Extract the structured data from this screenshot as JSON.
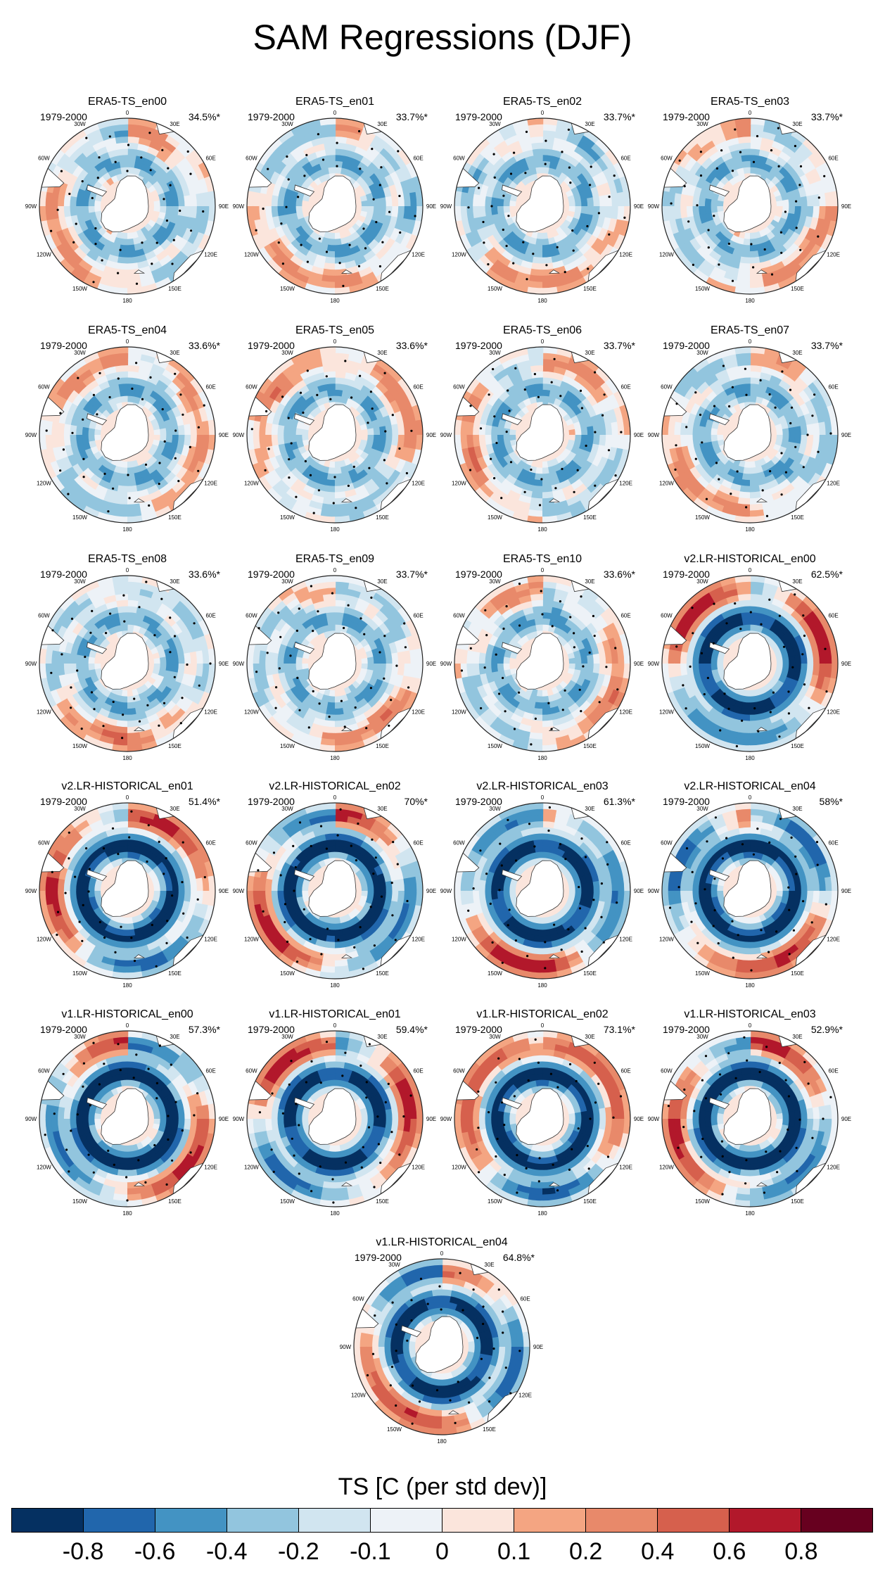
{
  "title": "SAM Regressions (DJF)",
  "colorbar": {
    "title": "TS [C (per std dev)]",
    "ticks": [
      "-0.8",
      "-0.6",
      "-0.4",
      "-0.2",
      "-0.1",
      "0",
      "0.1",
      "0.2",
      "0.4",
      "0.6",
      "0.8"
    ],
    "colors": [
      "#053061",
      "#2166ac",
      "#4393c3",
      "#92c5de",
      "#d1e5f0",
      "#edf2f7",
      "#fbe5dc",
      "#f4a582",
      "#e8896a",
      "#d6604d",
      "#b2182b",
      "#67001f"
    ]
  },
  "map_labels": {
    "lon_top": "0",
    "lon_30w": "30W",
    "lon_30e": "30E",
    "lon_60w": "60W",
    "lon_60e": "60E",
    "lon_90w": "90W",
    "lon_90e": "90E",
    "lon_120w": "120W",
    "lon_120e": "120E",
    "lon_150w": "150W",
    "lon_150e": "150E",
    "lon_bottom": "180"
  },
  "period": "1979-2000",
  "panels": [
    {
      "name": "ERA5-TS_en00",
      "pct": "34.5%*",
      "strength": 0.45
    },
    {
      "name": "ERA5-TS_en01",
      "pct": "33.7%*",
      "strength": 0.45
    },
    {
      "name": "ERA5-TS_en02",
      "pct": "33.7%*",
      "strength": 0.45
    },
    {
      "name": "ERA5-TS_en03",
      "pct": "33.7%*",
      "strength": 0.45
    },
    {
      "name": "ERA5-TS_en04",
      "pct": "33.6%*",
      "strength": 0.45
    },
    {
      "name": "ERA5-TS_en05",
      "pct": "33.6%*",
      "strength": 0.45
    },
    {
      "name": "ERA5-TS_en06",
      "pct": "33.7%*",
      "strength": 0.45
    },
    {
      "name": "ERA5-TS_en07",
      "pct": "33.7%*",
      "strength": 0.45
    },
    {
      "name": "ERA5-TS_en08",
      "pct": "33.6%*",
      "strength": 0.45
    },
    {
      "name": "ERA5-TS_en09",
      "pct": "33.7%*",
      "strength": 0.45
    },
    {
      "name": "ERA5-TS_en10",
      "pct": "33.6%*",
      "strength": 0.45
    },
    {
      "name": "v2.LR-HISTORICAL_en00",
      "pct": "62.5%*",
      "strength": 1
    },
    {
      "name": "v2.LR-HISTORICAL_en01",
      "pct": "51.4%*",
      "strength": 1
    },
    {
      "name": "v2.LR-HISTORICAL_en02",
      "pct": "70%*",
      "strength": 1
    },
    {
      "name": "v2.LR-HISTORICAL_en03",
      "pct": "61.3%*",
      "strength": 1
    },
    {
      "name": "v2.LR-HISTORICAL_en04",
      "pct": "58%*",
      "strength": 1
    },
    {
      "name": "v1.LR-HISTORICAL_en00",
      "pct": "57.3%*",
      "strength": 1
    },
    {
      "name": "v1.LR-HISTORICAL_en01",
      "pct": "59.4%*",
      "strength": 1
    },
    {
      "name": "v1.LR-HISTORICAL_en02",
      "pct": "73.1%*",
      "strength": 1
    },
    {
      "name": "v1.LR-HISTORICAL_en03",
      "pct": "52.9%*",
      "strength": 1
    },
    {
      "name": "v1.LR-HISTORICAL_en04",
      "pct": "64.8%*",
      "strength": 1
    }
  ]
}
